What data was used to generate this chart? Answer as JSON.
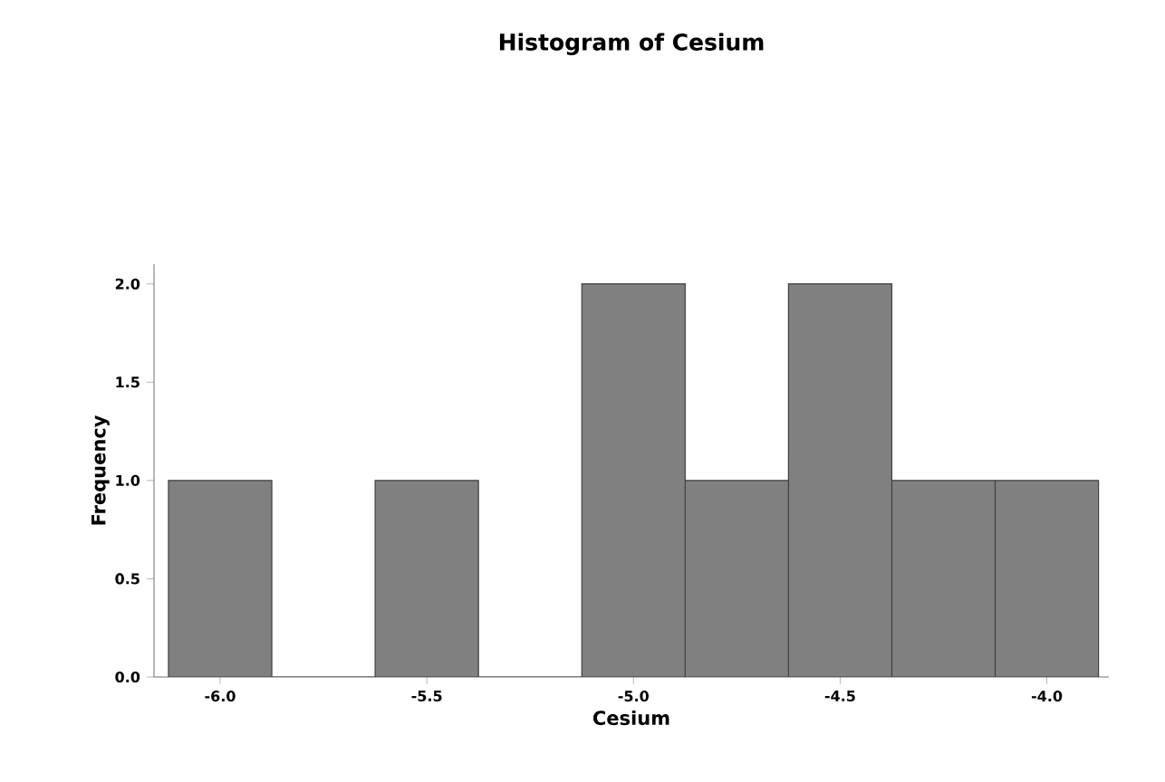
{
  "chart_data": {
    "type": "histogram",
    "title": "Histogram of Cesium",
    "xlabel": "Cesium",
    "ylabel": "Frequency",
    "bins": [
      -6.125,
      -5.875,
      -5.625,
      -5.375,
      -5.125,
      -4.875,
      -4.625,
      -4.375,
      -4.125,
      -3.875
    ],
    "values": [
      1,
      0,
      1,
      0,
      2,
      1,
      2,
      1,
      1
    ],
    "color": "#808080",
    "xlim": [
      -6.16,
      -3.85
    ],
    "xticks": [
      {
        "value": -6.0,
        "label": "-6.0"
      },
      {
        "value": -5.5,
        "label": "-5.5"
      },
      {
        "value": -5.0,
        "label": "-5.0"
      },
      {
        "value": -4.5,
        "label": "-4.5"
      },
      {
        "value": -4.0,
        "label": "-4.0"
      }
    ],
    "ylim": [
      0,
      2.1
    ],
    "yticks": [
      {
        "value": 0,
        "label": "0.0"
      },
      {
        "value": 0.5,
        "label": "0.5"
      },
      {
        "value": 1.0,
        "label": "1.0"
      },
      {
        "value": 1.5,
        "label": "1.5"
      },
      {
        "value": 2.0,
        "label": "2.0"
      }
    ]
  }
}
